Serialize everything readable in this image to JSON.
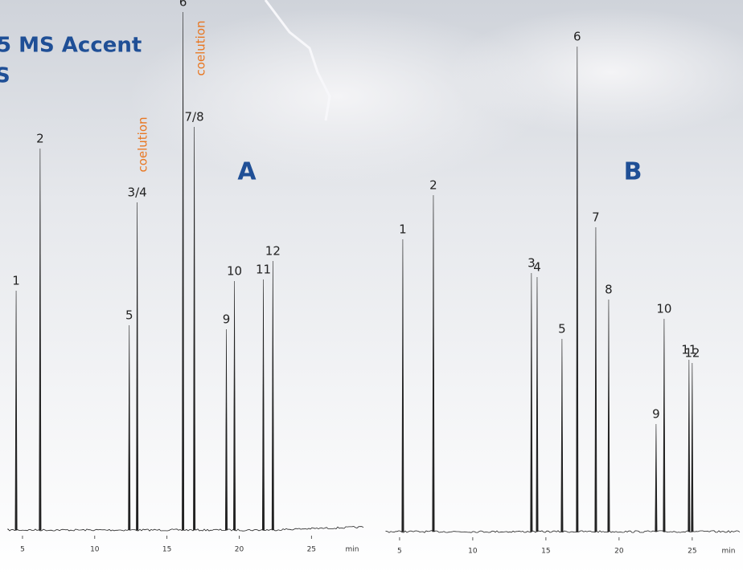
{
  "chart_data": [
    {
      "type": "chromatogram",
      "label": "A",
      "title_lines": [
        "5 MS Accent",
        "S"
      ],
      "annotations": [
        "coelution",
        "coelution"
      ],
      "x_unit": "min",
      "categories": [
        "1",
        "2",
        "5",
        "3/4",
        "6",
        "7/8",
        "9",
        "10",
        "11",
        "12"
      ],
      "x": [
        4.56,
        6.22,
        12.39,
        12.94,
        16.11,
        16.89,
        19.11,
        19.67,
        21.67,
        22.33
      ],
      "values": [
        298,
        475,
        255,
        408,
        645,
        502,
        250,
        310,
        312,
        335
      ],
      "color": "#222222",
      "xlim": [
        4,
        28.6
      ],
      "ylim": [
        0,
        700
      ],
      "xticks": [
        5,
        10,
        15,
        20,
        25
      ]
    },
    {
      "type": "chromatogram",
      "label": "B",
      "x_unit": "min",
      "categories": [
        "1",
        "2",
        "3",
        "4",
        "5",
        "6",
        "7",
        "8",
        "9",
        "10",
        "11",
        "12"
      ],
      "x": [
        5.22,
        7.31,
        14.01,
        14.4,
        16.1,
        17.14,
        18.41,
        19.29,
        22.53,
        23.08,
        24.78,
        25.0
      ],
      "values": [
        364,
        419,
        322,
        317,
        240,
        604,
        379,
        289,
        134,
        265,
        214,
        210
      ],
      "color": "#222222",
      "xlim": [
        4.07,
        28.25
      ],
      "ylim": [
        0,
        700
      ],
      "xticks": [
        5,
        10,
        15,
        20,
        25
      ]
    }
  ]
}
